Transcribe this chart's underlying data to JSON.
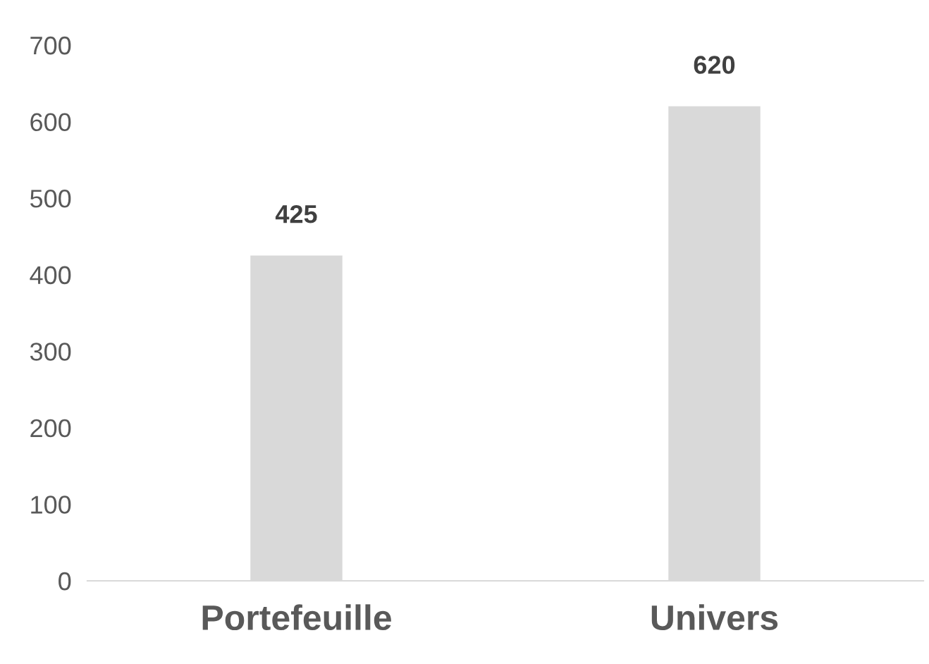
{
  "chart_data": {
    "type": "bar",
    "categories": [
      "Portefeuille",
      "Univers"
    ],
    "values": [
      425,
      620
    ],
    "color": "#d9d9d9",
    "ylim": [
      0,
      700
    ],
    "yticks": [
      0,
      100,
      200,
      300,
      400,
      500,
      600,
      700
    ],
    "grid": false,
    "data_labels": true
  }
}
